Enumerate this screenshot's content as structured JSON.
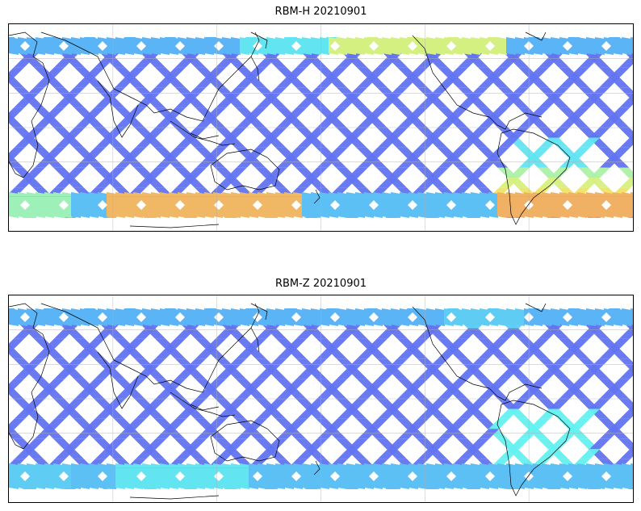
{
  "panels": [
    {
      "title": "RBM-H 20210901",
      "variant": "H",
      "colors": {
        "low": "#6464f0",
        "mid_low": "#5ab4f5",
        "mid": "#64f0f0",
        "mid_high": "#f0f064",
        "high": "#f06464"
      }
    },
    {
      "title": "RBM-Z 20210901",
      "variant": "Z",
      "colors": {
        "low": "#6464f0",
        "mid_low": "#5ab4f5",
        "mid": "#64f0f0",
        "mid_high": "#f0f064",
        "high": "#f06464"
      }
    }
  ],
  "map": {
    "projection": "plate-carree",
    "gridlines": true,
    "coastlines": true,
    "central_longitude_region": "Pacific-centered"
  }
}
